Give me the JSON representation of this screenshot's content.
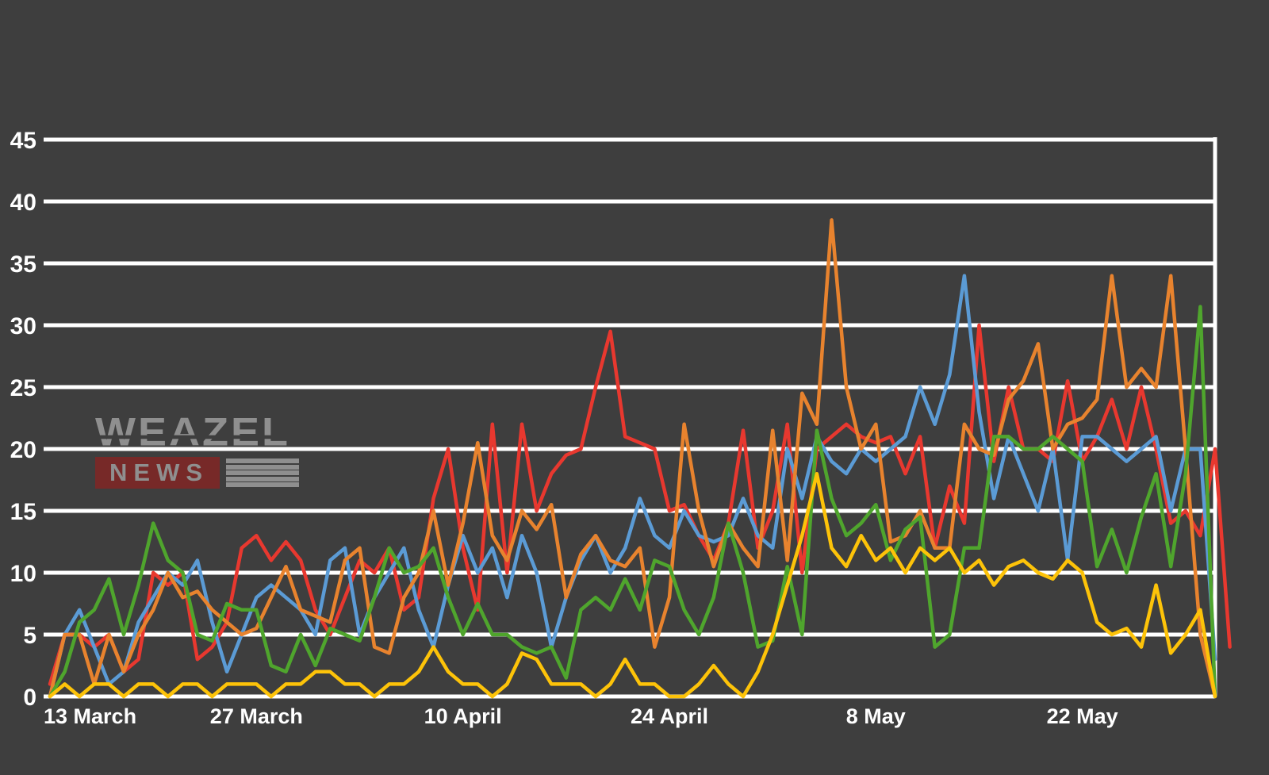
{
  "background_color": "#3e3e3e",
  "grid_color": "#ffffff",
  "label_color": "#ffffff",
  "watermark": {
    "title": "WEAZEL",
    "subtitle": "NEWS",
    "text_color": "#969696",
    "box_color": "#7c2827"
  },
  "chart_data": {
    "type": "line",
    "title": "",
    "xlabel": "",
    "ylabel": "",
    "ylim": [
      0,
      45
    ],
    "grid": "horizontal",
    "legend": "none",
    "y_ticks": [
      0,
      5,
      10,
      15,
      20,
      25,
      30,
      35,
      40,
      45
    ],
    "x_tick_labels": [
      "13 March",
      "27 March",
      "10 April",
      "24 April",
      "8 May",
      "22 May"
    ],
    "x_tick_indices": [
      0,
      14,
      28,
      42,
      56,
      70
    ],
    "n_points": 80,
    "series": [
      {
        "name": "red",
        "color": "#e8382f",
        "values": [
          1,
          5,
          5,
          4,
          5,
          2,
          3,
          10,
          9,
          10,
          3,
          4,
          6,
          12,
          13,
          11,
          12.5,
          11,
          7,
          5,
          8,
          11,
          10,
          12,
          7,
          8,
          16,
          20,
          12,
          7,
          22,
          10,
          22,
          15,
          18,
          19.5,
          20,
          25,
          29.5,
          21,
          20.5,
          20,
          15,
          15.5,
          13,
          11,
          14,
          21.5,
          12,
          15,
          22,
          10,
          20,
          21,
          22,
          21,
          20.5,
          21,
          18,
          21,
          12,
          17,
          14,
          30,
          19,
          25,
          20,
          20,
          19,
          25.5,
          19,
          21,
          24,
          20,
          25,
          20,
          14,
          15,
          13,
          20,
          4
        ]
      },
      {
        "name": "blue",
        "color": "#5b9bd5",
        "values": [
          0,
          5,
          7,
          4,
          1,
          2,
          6,
          8,
          10,
          9,
          11,
          6,
          2,
          5,
          8,
          9,
          8,
          7,
          5,
          11,
          12,
          5,
          8,
          10,
          12,
          7,
          4,
          9,
          13,
          10,
          12,
          8,
          13,
          10,
          4,
          8,
          11,
          13,
          10,
          12,
          16,
          13,
          12,
          15,
          13,
          12.5,
          13,
          16,
          13,
          12,
          20,
          16,
          21,
          19,
          18,
          20,
          19,
          20,
          21,
          25,
          22,
          26,
          34,
          23,
          16,
          21,
          18,
          15,
          20,
          11,
          21,
          21,
          20,
          19,
          20,
          21,
          15,
          20,
          20,
          3
        ]
      },
      {
        "name": "orange",
        "color": "#e8832e",
        "values": [
          0,
          5,
          5,
          1,
          5,
          2,
          5,
          7,
          10,
          8,
          8.5,
          7,
          6,
          5,
          5.5,
          8,
          10.5,
          7,
          6.5,
          6,
          11,
          12,
          4,
          3.5,
          8,
          10,
          15,
          9,
          14,
          20.5,
          13,
          11,
          15,
          13.5,
          15.5,
          8,
          11.5,
          13,
          11,
          10.5,
          12,
          4,
          8,
          22,
          15,
          10.5,
          14,
          12,
          10.5,
          21.5,
          11,
          24.5,
          22,
          38.5,
          25,
          20,
          22,
          12.5,
          13,
          15,
          12,
          12,
          22,
          20,
          19.5,
          24,
          25.5,
          28.5,
          20,
          22,
          22.5,
          24,
          34,
          25,
          26.5,
          25,
          34,
          20,
          5,
          0
        ]
      },
      {
        "name": "green",
        "color": "#4fa52d",
        "values": [
          0,
          2,
          6,
          7,
          9.5,
          5,
          9,
          14,
          11,
          10,
          5,
          4.5,
          7.5,
          7,
          7,
          2.5,
          2,
          5,
          2.5,
          5.5,
          5,
          4.5,
          8,
          12,
          10,
          10.5,
          12,
          8,
          5,
          7.5,
          5,
          5,
          4,
          3.5,
          4,
          1.5,
          7,
          8,
          7,
          9.5,
          7,
          11,
          10.5,
          7,
          5,
          8,
          14,
          10,
          4,
          4.5,
          10.5,
          5,
          21.5,
          16,
          13,
          14,
          15.5,
          11,
          13.5,
          14.5,
          4,
          5,
          12,
          12,
          21,
          21,
          20,
          20,
          21,
          20,
          19,
          10.5,
          13.5,
          10,
          14.5,
          18,
          10.5,
          18,
          31.5,
          0
        ]
      },
      {
        "name": "yellow",
        "color": "#fdc309",
        "values": [
          0,
          1,
          0,
          1,
          1,
          0,
          1,
          1,
          0,
          1,
          1,
          0,
          1,
          1,
          1,
          0,
          1,
          1,
          2,
          2,
          1,
          1,
          0,
          1,
          1,
          2,
          4,
          2,
          1,
          1,
          0,
          1,
          3.5,
          3,
          1,
          1,
          1,
          0,
          1,
          3,
          1,
          1,
          0,
          0,
          1,
          2.5,
          1,
          0,
          2,
          5,
          9,
          13,
          18,
          12,
          10.5,
          13,
          11,
          12,
          10,
          12,
          11,
          12,
          10,
          11,
          9,
          10.5,
          11,
          10,
          9.5,
          11,
          10,
          6,
          5,
          5.5,
          4,
          9,
          3.5,
          5,
          7,
          0
        ]
      }
    ]
  }
}
